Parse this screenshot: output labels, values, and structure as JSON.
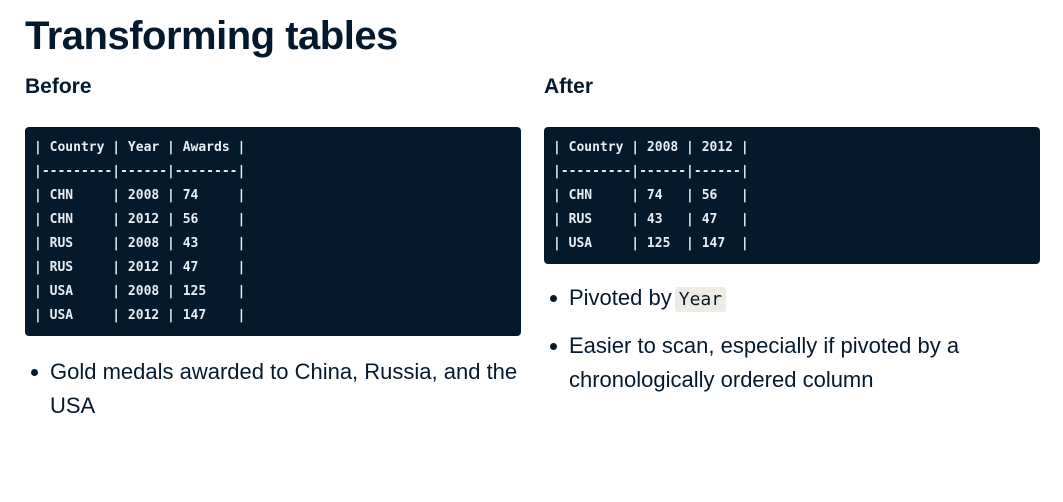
{
  "title": "Transforming tables",
  "before": {
    "heading": "Before",
    "table_lines": [
      "| Country | Year | Awards |",
      "|---------|------|--------|",
      "| CHN     | 2008 | 74     |",
      "| CHN     | 2012 | 56     |",
      "| RUS     | 2008 | 43     |",
      "| RUS     | 2012 | 47     |",
      "| USA     | 2008 | 125    |",
      "| USA     | 2012 | 147    |"
    ],
    "bullets": [
      "Gold medals awarded to China, Russia, and the USA"
    ]
  },
  "after": {
    "heading": "After",
    "table_lines": [
      "| Country | 2008 | 2012 |",
      "|---------|------|------|",
      "| CHN     | 74   | 56   |",
      "| RUS     | 43   | 47   |",
      "| USA     | 125  | 147  |"
    ],
    "bullet_pivot_text": "Pivoted by",
    "bullet_pivot_code": "Year",
    "bullet_scan": "Easier to scan, especially if pivoted by a chronologically ordered column"
  },
  "colors": {
    "text": "#05192d",
    "code_background": "#05192d",
    "code_text": "#e8eef5",
    "inline_code_background": "#efeae4"
  }
}
